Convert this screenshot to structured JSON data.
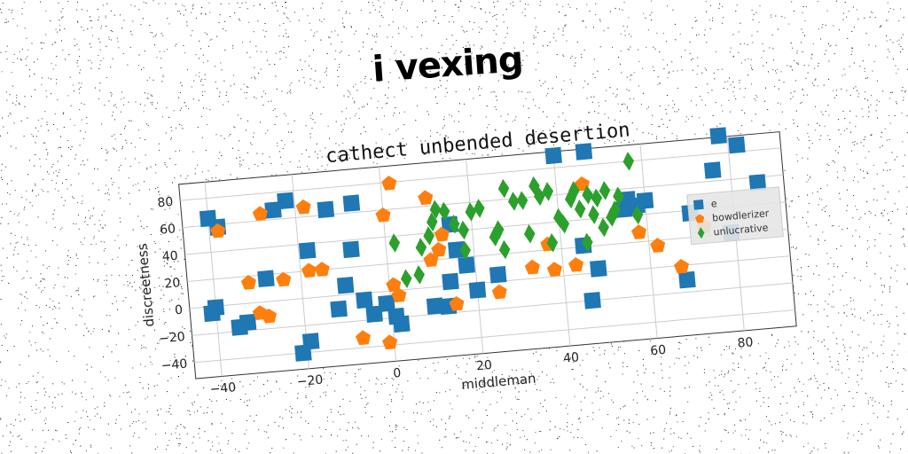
{
  "header": {
    "title": "i vexing"
  },
  "chart_data": {
    "type": "scatter",
    "title": "cathect unbended desertion",
    "xlabel": "middleman",
    "ylabel": "discreetness",
    "xlim": [
      -46,
      92
    ],
    "ylim": [
      -52,
      92
    ],
    "xticks": [
      -40,
      -20,
      0,
      20,
      40,
      60,
      80
    ],
    "yticks": [
      -40,
      -20,
      0,
      20,
      40,
      60,
      80
    ],
    "grid": true,
    "legend_position": "right",
    "series": [
      {
        "name": "e",
        "marker": "square",
        "color": "#1f77b4",
        "points": [
          [
            -40,
            65
          ],
          [
            -38,
            58
          ],
          [
            -22,
            73
          ],
          [
            -25,
            67
          ],
          [
            -18,
            35
          ],
          [
            -13,
            64
          ],
          [
            -7,
            67
          ],
          [
            -8,
            33
          ],
          [
            -4,
            -16
          ],
          [
            -6,
            -5
          ],
          [
            -12,
            -10
          ],
          [
            -10,
            7
          ],
          [
            -28,
            17
          ],
          [
            -33,
            -14
          ],
          [
            -35,
            -17
          ],
          [
            -40,
            -1
          ],
          [
            -41,
            -5
          ],
          [
            -19,
            -32
          ],
          [
            -21,
            -40
          ],
          [
            -1,
            -9
          ],
          [
            1,
            -19
          ],
          [
            2,
            -25
          ],
          [
            10,
            -14
          ],
          [
            13,
            -15
          ],
          [
            14,
            3
          ],
          [
            16,
            26
          ],
          [
            15,
            45
          ],
          [
            18,
            14
          ],
          [
            20,
            -5
          ],
          [
            25,
            5
          ],
          [
            55,
            45
          ],
          [
            56,
            52
          ],
          [
            45,
            21
          ],
          [
            48,
            3
          ],
          [
            46,
            -20
          ],
          [
            68,
            -11
          ],
          [
            70,
            38
          ],
          [
            76,
            68
          ],
          [
            78,
            93
          ],
          [
            82,
            85
          ],
          [
            79,
            21
          ],
          [
            86,
            56
          ],
          [
            58,
            47
          ],
          [
            60,
            50
          ],
          [
            40,
            89
          ],
          [
            47,
            90
          ]
        ]
      },
      {
        "name": "bowdlerizer",
        "marker": "pentagon",
        "color": "#ff7f0e",
        "points": [
          [
            -38,
            55
          ],
          [
            -28,
            65
          ],
          [
            -18,
            67
          ],
          [
            -32,
            15
          ],
          [
            -28,
            -11
          ],
          [
            -30,
            -8
          ],
          [
            -24,
            15
          ],
          [
            -18,
            20
          ],
          [
            -15,
            20
          ],
          [
            -7,
            -33
          ],
          [
            -1,
            -38
          ],
          [
            1,
            4
          ],
          [
            2,
            -4
          ],
          [
            2,
            79
          ],
          [
            0,
            56
          ],
          [
            10,
            66
          ],
          [
            13,
            38
          ],
          [
            12,
            27
          ],
          [
            10,
            20
          ],
          [
            15,
            -14
          ],
          [
            25,
            -8
          ],
          [
            33,
            8
          ],
          [
            38,
            5
          ],
          [
            37,
            24
          ],
          [
            43,
            7
          ],
          [
            46,
            66
          ],
          [
            58,
            27
          ],
          [
            62,
            16
          ],
          [
            67,
            -1
          ],
          [
            73,
            27
          ]
        ]
      },
      {
        "name": "unlucrative",
        "marker": "diamond",
        "color": "#2ca02c",
        "points": [
          [
            2,
            35
          ],
          [
            4,
            8
          ],
          [
            7,
            10
          ],
          [
            8,
            30
          ],
          [
            10,
            38
          ],
          [
            11,
            48
          ],
          [
            12,
            57
          ],
          [
            14,
            55
          ],
          [
            16,
            45
          ],
          [
            18,
            40
          ],
          [
            18,
            25
          ],
          [
            20,
            53
          ],
          [
            22,
            55
          ],
          [
            25,
            33
          ],
          [
            26,
            38
          ],
          [
            27,
            23
          ],
          [
            28,
            68
          ],
          [
            30,
            58
          ],
          [
            32,
            58
          ],
          [
            33,
            33
          ],
          [
            35,
            68
          ],
          [
            36,
            60
          ],
          [
            38,
            25
          ],
          [
            40,
            43
          ],
          [
            41,
            38
          ],
          [
            43,
            56
          ],
          [
            45,
            48
          ],
          [
            46,
            23
          ],
          [
            47,
            58
          ],
          [
            48,
            43
          ],
          [
            49,
            55
          ],
          [
            50,
            33
          ],
          [
            51,
            60
          ],
          [
            52,
            40
          ],
          [
            53,
            45
          ],
          [
            54,
            55
          ],
          [
            57,
            80
          ],
          [
            58,
            40
          ],
          [
            44,
            62
          ],
          [
            38,
            63
          ]
        ]
      }
    ]
  }
}
